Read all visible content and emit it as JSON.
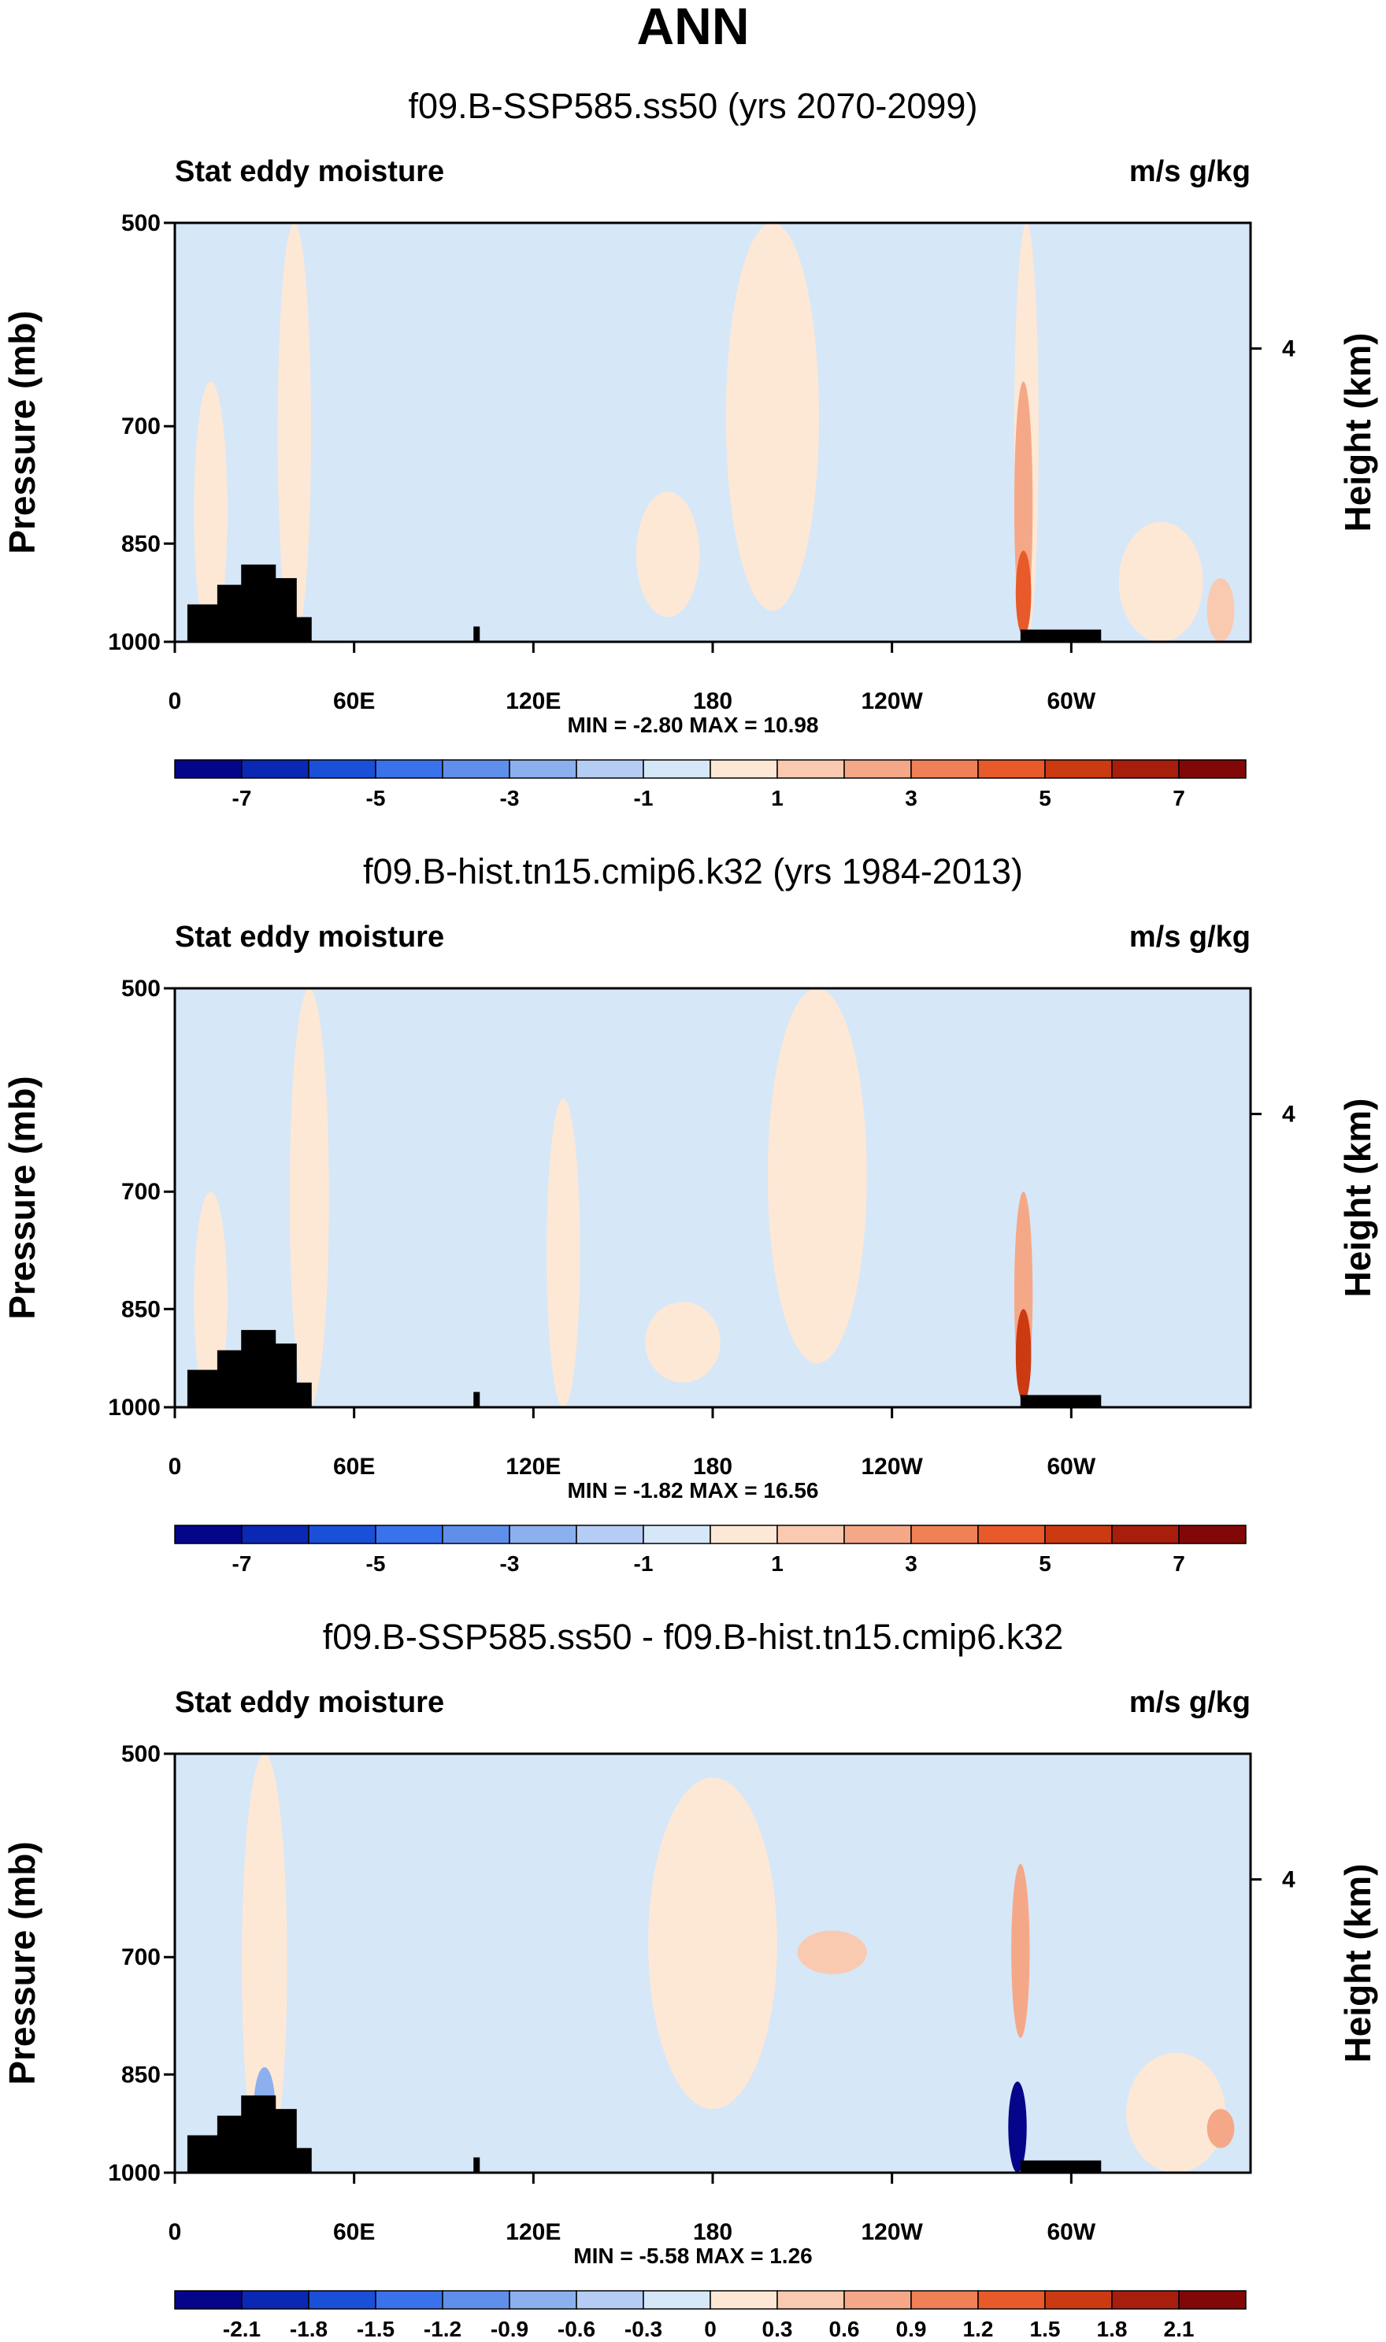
{
  "figure_title": "ANN",
  "colors": {
    "neutral_pos": "#fde8d6",
    "neutral_neg": "#d6e7f8",
    "frame": "#000000",
    "land": "#000000"
  },
  "colorbar_colors": [
    "#05058a",
    "#0a28b4",
    "#1a4fd8",
    "#3a72ec",
    "#5f8fea",
    "#8cb0ee",
    "#b5cdf4",
    "#d6e7f8",
    "#fde8d6",
    "#f9cab0",
    "#f5a887",
    "#f08157",
    "#e85a2a",
    "#cc3a12",
    "#a81e0c",
    "#820808"
  ],
  "chart_data": [
    {
      "type": "heatmap",
      "title": "f09.B-SSP585.ss50 (yrs 2070-2099)",
      "left_label": "Stat eddy moisture",
      "right_label": "m/s g/kg",
      "ylabel": "Pressure (mb)",
      "y2label": "Height (km)",
      "y_ticks": [
        "500",
        "700",
        "850",
        "1000"
      ],
      "y_ticks_values": [
        500,
        700,
        850,
        1000
      ],
      "y2_ticks": [
        "4"
      ],
      "x_ticks": [
        "0",
        "60E",
        "120E",
        "180",
        "120W",
        "60W"
      ],
      "x_ticks_values": [
        0,
        60,
        120,
        180,
        240,
        300
      ],
      "xlim": [
        0,
        360
      ],
      "ylim": [
        1000,
        500
      ],
      "minmax": "MIN = -2.80  MAX = 10.98",
      "colorbar_labels": [
        "-7",
        "-5",
        "-3",
        "-1",
        "1",
        "3",
        "5",
        "7"
      ],
      "pos_features": [
        {
          "lon": 40,
          "p_top": 500,
          "p_bot": 1000,
          "width": 8,
          "level": 1
        },
        {
          "lon": 12,
          "p_top": 650,
          "p_bot": 1000,
          "width": 8,
          "level": 1
        },
        {
          "lon": 200,
          "p_top": 500,
          "p_bot": 950,
          "width": 28,
          "level": 1
        },
        {
          "lon": 165,
          "p_top": 780,
          "p_bot": 960,
          "width": 18,
          "level": 1
        },
        {
          "lon": 285,
          "p_top": 500,
          "p_bot": 1000,
          "width": 5,
          "level": 1
        },
        {
          "lon": 330,
          "p_top": 820,
          "p_bot": 1000,
          "width": 25,
          "level": 1
        },
        {
          "lon": 284,
          "p_top": 650,
          "p_bot": 980,
          "width": 3,
          "level": 3
        },
        {
          "lon": 284,
          "p_top": 860,
          "p_bot": 990,
          "width": 2,
          "level": 5
        },
        {
          "lon": 350,
          "p_top": 900,
          "p_bot": 1000,
          "width": 6,
          "level": 2
        }
      ]
    },
    {
      "type": "heatmap",
      "title": "f09.B-hist.tn15.cmip6.k32 (yrs 1984-2013)",
      "left_label": "Stat eddy moisture",
      "right_label": "m/s g/kg",
      "ylabel": "Pressure (mb)",
      "y2label": "Height (km)",
      "y_ticks": [
        "500",
        "700",
        "850",
        "1000"
      ],
      "y_ticks_values": [
        500,
        700,
        850,
        1000
      ],
      "y2_ticks": [
        "4"
      ],
      "x_ticks": [
        "0",
        "60E",
        "120E",
        "180",
        "120W",
        "60W"
      ],
      "x_ticks_values": [
        0,
        60,
        120,
        180,
        240,
        300
      ],
      "xlim": [
        0,
        360
      ],
      "ylim": [
        1000,
        500
      ],
      "minmax": "MIN = -1.82  MAX = 16.56",
      "colorbar_labels": [
        "-7",
        "-5",
        "-3",
        "-1",
        "1",
        "3",
        "5",
        "7"
      ],
      "pos_features": [
        {
          "lon": 45,
          "p_top": 500,
          "p_bot": 1000,
          "width": 10,
          "level": 1
        },
        {
          "lon": 12,
          "p_top": 700,
          "p_bot": 1000,
          "width": 8,
          "level": 1
        },
        {
          "lon": 215,
          "p_top": 500,
          "p_bot": 930,
          "width": 30,
          "level": 1
        },
        {
          "lon": 170,
          "p_top": 840,
          "p_bot": 960,
          "width": 22,
          "level": 1
        },
        {
          "lon": 130,
          "p_top": 600,
          "p_bot": 1000,
          "width": 8,
          "level": 1
        },
        {
          "lon": 284,
          "p_top": 700,
          "p_bot": 980,
          "width": 3,
          "level": 3
        },
        {
          "lon": 284,
          "p_top": 850,
          "p_bot": 990,
          "width": 2,
          "level": 6
        }
      ]
    },
    {
      "type": "heatmap",
      "title": "f09.B-SSP585.ss50 - f09.B-hist.tn15.cmip6.k32",
      "left_label": "Stat eddy moisture",
      "right_label": "m/s g/kg",
      "ylabel": "Pressure (mb)",
      "y2label": "Height (km)",
      "y_ticks": [
        "500",
        "700",
        "850",
        "1000"
      ],
      "y_ticks_values": [
        500,
        700,
        850,
        1000
      ],
      "y2_ticks": [
        "4"
      ],
      "x_ticks": [
        "0",
        "60E",
        "120E",
        "180",
        "120W",
        "60W"
      ],
      "x_ticks_values": [
        0,
        60,
        120,
        180,
        240,
        300
      ],
      "xlim": [
        0,
        360
      ],
      "ylim": [
        1000,
        500
      ],
      "minmax": "MIN = -5.58  MAX =  1.26",
      "colorbar_labels": [
        "-2.1",
        "-1.8",
        "-1.5",
        "-1.2",
        "-0.9",
        "-0.6",
        "-0.3",
        "0",
        "0.3",
        "0.6",
        "0.9",
        "1.2",
        "1.5",
        "1.8",
        "2.1"
      ],
      "pos_features": [
        {
          "lon": 30,
          "p_top": 500,
          "p_bot": 1000,
          "width": 12,
          "level": 1
        },
        {
          "lon": 180,
          "p_top": 520,
          "p_bot": 900,
          "width": 40,
          "level": 1
        },
        {
          "lon": 220,
          "p_top": 670,
          "p_bot": 720,
          "width": 20,
          "level": 2
        },
        {
          "lon": 283,
          "p_top": 600,
          "p_bot": 800,
          "width": 3,
          "level": 3
        },
        {
          "lon": 335,
          "p_top": 820,
          "p_bot": 1000,
          "width": 30,
          "level": 1
        },
        {
          "lon": 350,
          "p_top": 900,
          "p_bot": 960,
          "width": 6,
          "level": 3
        }
      ],
      "neg_features": [
        {
          "lon": 282,
          "p_top": 860,
          "p_bot": 1000,
          "width": 3,
          "level": 7
        },
        {
          "lon": 30,
          "p_top": 840,
          "p_bot": 960,
          "width": 4,
          "level": 2
        }
      ]
    }
  ]
}
